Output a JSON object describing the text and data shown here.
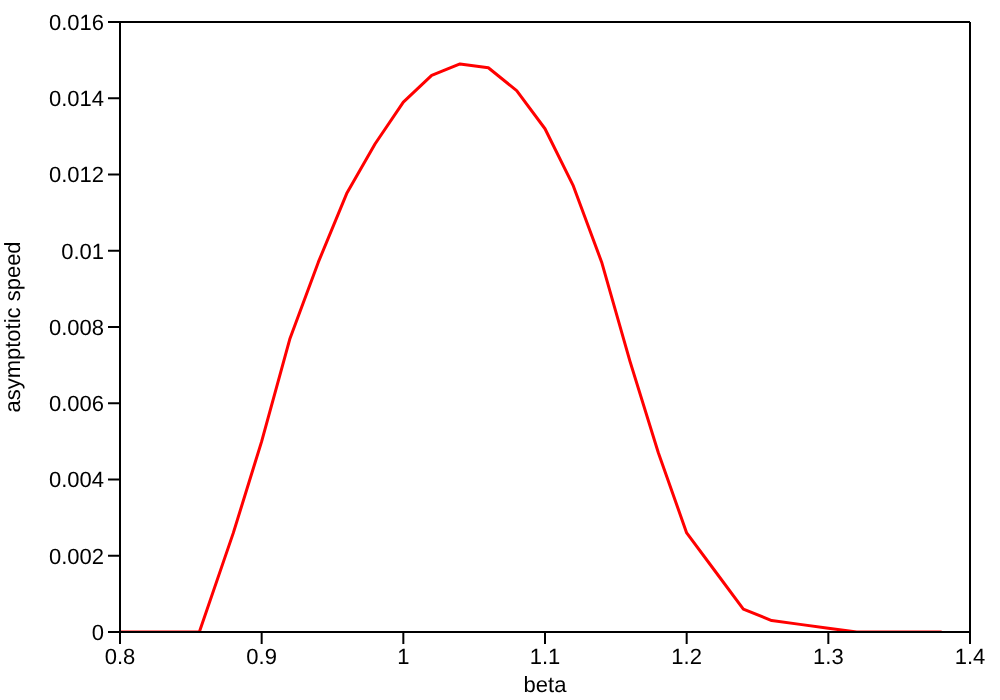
{
  "chart_data": {
    "type": "line",
    "xlabel": "beta",
    "ylabel": "asymptotic speed",
    "x": [
      0.8,
      0.856,
      0.88,
      0.9,
      0.92,
      0.94,
      0.96,
      0.98,
      1.0,
      1.02,
      1.04,
      1.06,
      1.08,
      1.1,
      1.12,
      1.14,
      1.16,
      1.18,
      1.2,
      1.22,
      1.24,
      1.26,
      1.28,
      1.3,
      1.32,
      1.38
    ],
    "series": [
      {
        "color": "#ff0000",
        "values": [
          0,
          0,
          0.0026,
          0.005,
          0.0077,
          0.0097,
          0.0115,
          0.0128,
          0.0139,
          0.0146,
          0.0149,
          0.0148,
          0.0142,
          0.0132,
          0.0117,
          0.0097,
          0.0071,
          0.0047,
          0.0026,
          0.0016,
          0.0006,
          0.0003,
          0.0002,
          0.0001,
          0,
          0
        ]
      }
    ],
    "xlim": [
      0.8,
      1.4
    ],
    "xticks": [
      0.8,
      0.9,
      1,
      1.1,
      1.2,
      1.3,
      1.4
    ],
    "ylim": [
      0,
      0.016
    ],
    "yticks": [
      0,
      0.002,
      0.004,
      0.006,
      0.008,
      0.01,
      0.012,
      0.014,
      0.016
    ],
    "grid": false,
    "legend": false,
    "marker": "none",
    "line_style": "solid"
  }
}
